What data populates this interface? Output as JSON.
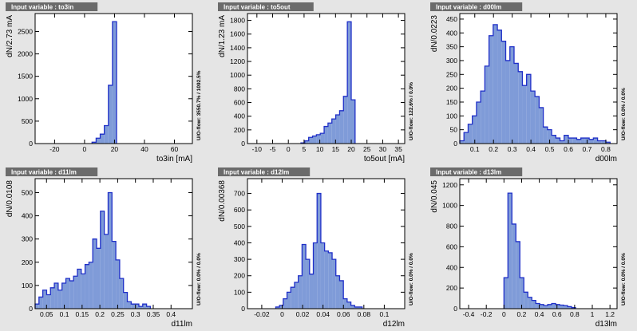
{
  "page": {
    "background": "#e5e5e5"
  },
  "colors": {
    "fill": "#7f9bd8",
    "line": "#1f2fc8",
    "frame": "#000000",
    "tag_bg": "#6b6b6b",
    "tag_text": "#ffffff"
  },
  "chart_data": [
    {
      "type": "bar",
      "title": "Input variable : to3in",
      "xlabel": "to3in  [mA]",
      "ylabel": "dN/2.73 mA",
      "overflow_label": "U/O-flow: 3550.7% / 1092.5%",
      "xlim": [
        -33,
        72
      ],
      "ylim": [
        0,
        2900
      ],
      "xticks": [
        -20,
        0,
        20,
        40,
        60
      ],
      "yticks": [
        0,
        500,
        1000,
        1500,
        2000,
        2500
      ],
      "bins": {
        "edges_start": 5.0,
        "width": 2.73,
        "values": [
          30,
          120,
          210,
          400,
          1300,
          2720
        ]
      }
    },
    {
      "type": "bar",
      "title": "Input variable : to5out",
      "xlabel": "to5out  [mA]",
      "ylabel": "dN/1.23 mA",
      "overflow_label": "U/O-flow: 122.6% / 0.0%",
      "xlim": [
        -13,
        37
      ],
      "ylim": [
        0,
        1900
      ],
      "xticks": [
        -10,
        -5,
        0,
        5,
        10,
        15,
        20,
        25,
        30,
        35
      ],
      "yticks": [
        0,
        200,
        400,
        600,
        800,
        1000,
        1200,
        1400,
        1600,
        1800
      ],
      "bins": {
        "edges_start": 4.0,
        "width": 1.23,
        "values": [
          10,
          40,
          90,
          110,
          130,
          150,
          250,
          300,
          360,
          420,
          480,
          690,
          1780,
          640
        ]
      }
    },
    {
      "type": "bar",
      "title": "Input variable : d00lm",
      "xlabel": "d00lm",
      "ylabel": "dN/0.0223",
      "overflow_label": "U/O-flow: 0.0% / 0.0%",
      "xlim": [
        0.02,
        0.86
      ],
      "ylim": [
        0,
        470
      ],
      "xticks": [
        0.1,
        0.2,
        0.3,
        0.4,
        0.5,
        0.6,
        0.7,
        0.8
      ],
      "yticks": [
        0,
        50,
        100,
        150,
        200,
        250,
        300,
        350,
        400,
        450
      ],
      "bins": {
        "edges_start": 0.02,
        "width": 0.0223,
        "values": [
          10,
          40,
          70,
          100,
          150,
          190,
          280,
          390,
          430,
          410,
          370,
          300,
          350,
          290,
          260,
          210,
          250,
          190,
          170,
          130,
          60,
          50,
          30,
          20,
          10,
          30,
          20,
          20,
          15,
          20,
          20,
          15,
          20,
          10,
          10,
          5
        ]
      }
    },
    {
      "type": "bar",
      "title": "Input variable : d11lm",
      "xlabel": "d11lm",
      "ylabel": "dN/0.0108",
      "overflow_label": "U/O-flow: 0.0% / 0.0%",
      "xlim": [
        0.018,
        0.46
      ],
      "ylim": [
        0,
        560
      ],
      "xticks": [
        0.05,
        0.1,
        0.15,
        0.2,
        0.25,
        0.3,
        0.35,
        0.4
      ],
      "yticks": [
        0,
        100,
        200,
        300,
        400,
        500
      ],
      "bins": {
        "edges_start": 0.018,
        "width": 0.0108,
        "values": [
          20,
          50,
          80,
          60,
          90,
          110,
          80,
          110,
          130,
          120,
          140,
          170,
          150,
          190,
          200,
          300,
          260,
          420,
          320,
          500,
          290,
          210,
          130,
          70,
          30,
          20,
          20,
          10,
          20,
          10
        ]
      }
    },
    {
      "type": "bar",
      "title": "Input variable : d12lm",
      "xlabel": "d12lm",
      "ylabel": "dN/0.00368",
      "overflow_label": "U/O-flow: 0.0% / 0.0%",
      "xlim": [
        -0.034,
        0.12
      ],
      "ylim": [
        0,
        790
      ],
      "xticks": [
        -0.02,
        0,
        0.02,
        0.04,
        0.06,
        0.08,
        0.1
      ],
      "yticks": [
        0,
        100,
        200,
        300,
        400,
        500,
        600,
        700
      ],
      "bins": {
        "edges_start": -0.0063,
        "width": 0.00368,
        "values": [
          10,
          20,
          60,
          100,
          130,
          160,
          200,
          390,
          300,
          210,
          400,
          700,
          400,
          350,
          340,
          300,
          200,
          170,
          60,
          40,
          20,
          10,
          10
        ]
      }
    },
    {
      "type": "bar",
      "title": "Input variable : d13lm",
      "xlabel": "d13lm",
      "ylabel": "dN/0.045",
      "overflow_label": "U/O-flow: 0.0% / 0.0%",
      "xlim": [
        -0.5,
        1.28
      ],
      "ylim": [
        0,
        1260
      ],
      "xticks": [
        -0.4,
        -0.2,
        0,
        0.2,
        0.4,
        0.6,
        0.8,
        1,
        1.2
      ],
      "yticks": [
        0,
        200,
        400,
        600,
        800,
        1000,
        1200
      ],
      "bins": {
        "edges_start": 0.0,
        "width": 0.045,
        "values": [
          300,
          1120,
          820,
          650,
          300,
          160,
          110,
          80,
          50,
          40,
          30,
          40,
          50,
          40,
          35,
          30,
          20,
          10
        ]
      }
    }
  ]
}
